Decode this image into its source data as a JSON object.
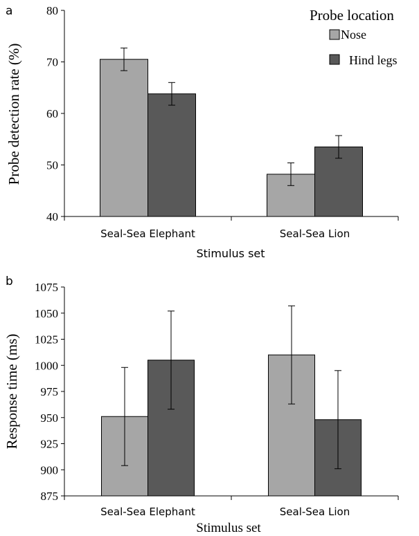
{
  "chart_data": [
    {
      "type": "bar",
      "panel_label": "a",
      "categories": [
        "Seal-Sea Elephant",
        "Seal-Sea Lion"
      ],
      "series": [
        {
          "name": "Nose",
          "values": [
            70.5,
            48.2
          ],
          "errors": [
            2.2,
            2.2
          ],
          "color": "#a6a6a6"
        },
        {
          "name": "Hind legs",
          "values": [
            63.8,
            53.5
          ],
          "errors": [
            2.2,
            2.2
          ],
          "color": "#595959"
        }
      ],
      "ylabel": "Probe detection rate (%)",
      "xlabel": "Stimulus set",
      "ylim": [
        40,
        80
      ],
      "yticks": [
        "40",
        "50",
        "60",
        "70",
        "80"
      ],
      "legend_title": "Probe location",
      "legend_position": "top-right"
    },
    {
      "type": "bar",
      "panel_label": "b",
      "categories": [
        "Seal-Sea Elephant",
        "Seal-Sea Lion"
      ],
      "series": [
        {
          "name": "Nose",
          "values": [
            951,
            1010
          ],
          "errors": [
            47,
            47
          ],
          "color": "#a6a6a6"
        },
        {
          "name": "Hind legs",
          "values": [
            1005,
            948
          ],
          "errors": [
            47,
            47
          ],
          "color": "#595959"
        }
      ],
      "ylabel": "Response time (ms)",
      "xlabel": "Stimulus set",
      "ylim": [
        875,
        1075
      ],
      "yticks": [
        "875",
        "900",
        "925",
        "950",
        "975",
        "1000",
        "1025",
        "1050",
        "1075"
      ]
    }
  ]
}
